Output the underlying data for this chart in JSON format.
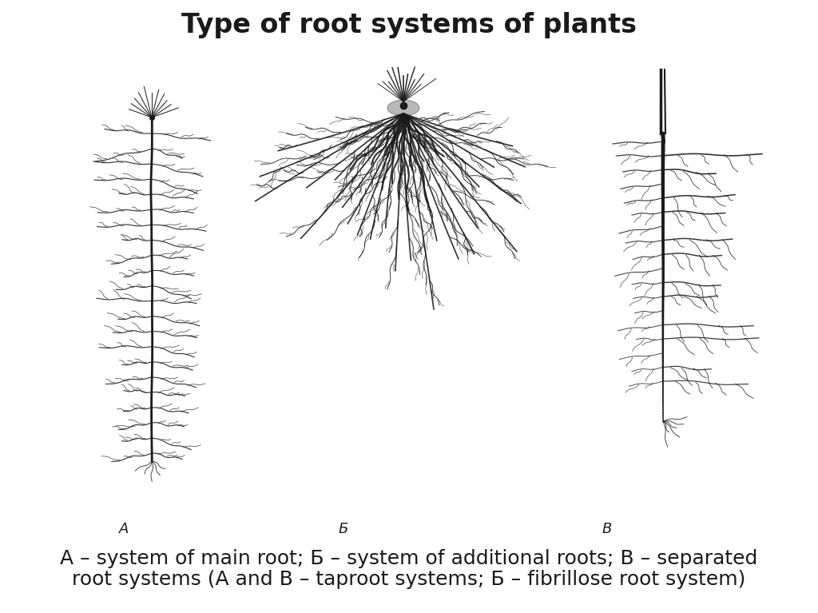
{
  "title": "Type of root systems of plants",
  "title_fontsize": 24,
  "title_fontweight": "bold",
  "caption_line1": "A – system of main root; Б – system of additional roots; B – separated",
  "caption_line2": "root systems (A and B – taproot systems; Б – fibrillose root system)",
  "caption_fontsize": 18,
  "label_A": "A",
  "label_B": "Б",
  "label_C": "B",
  "background_color": "#ffffff",
  "drawing_color": "#1a1a1a"
}
